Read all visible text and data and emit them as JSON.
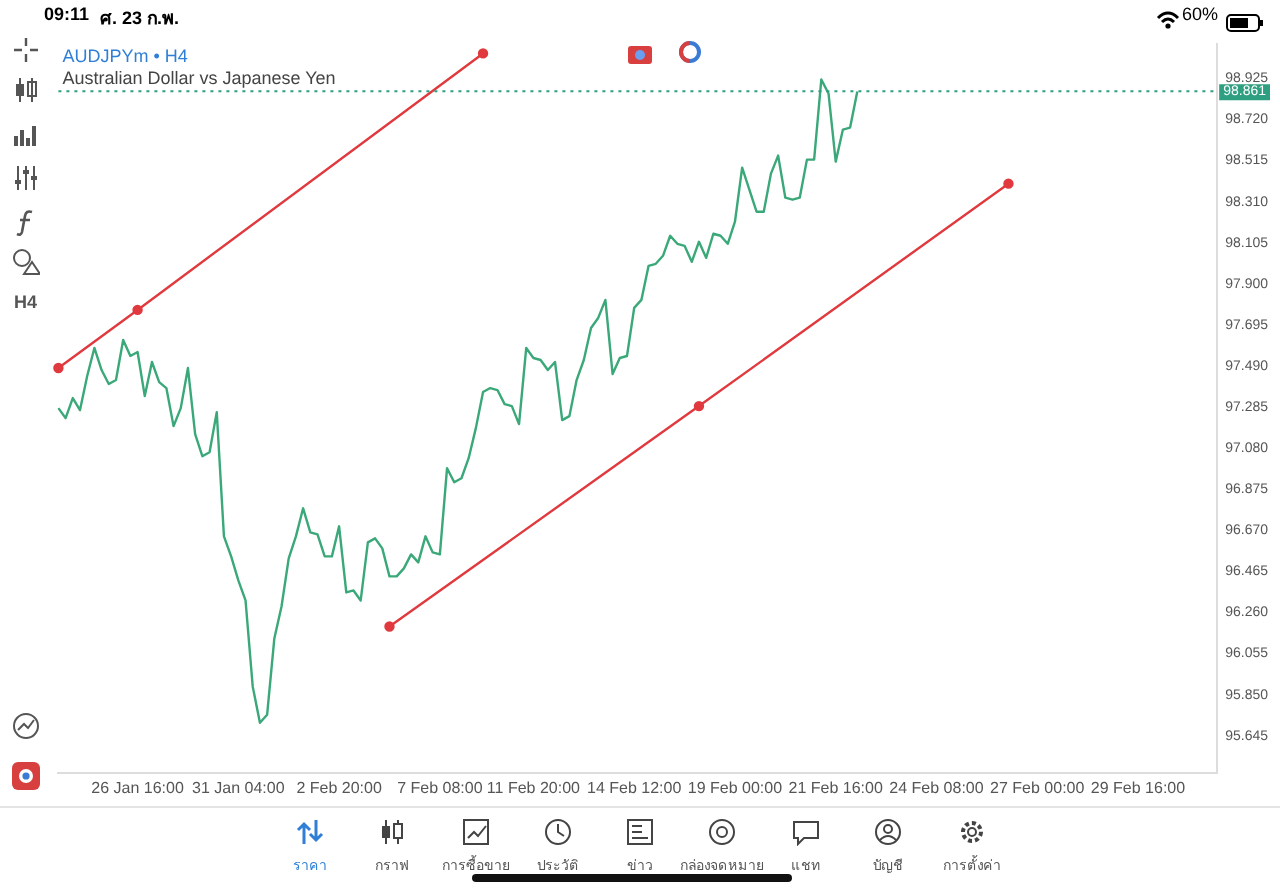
{
  "chart_data": {
    "type": "line",
    "title": "AUDJPYm • H4",
    "subtitle": "Australian Dollar vs Japanese Yen",
    "categories": [
      null,
      null,
      null,
      null,
      null,
      null,
      null,
      null,
      null,
      null,
      null,
      "26 Jan 16:00",
      null,
      null,
      null,
      null,
      null,
      null,
      null,
      null,
      null,
      null,
      null,
      null,
      null,
      "31 Jan 04:00",
      null,
      null,
      null,
      null,
      null,
      null,
      null,
      null,
      null,
      null,
      null,
      null,
      null,
      "2 Feb 20:00",
      null,
      null,
      null,
      null,
      null,
      null,
      null,
      null,
      null,
      null,
      null,
      null,
      null,
      "7 Feb 08:00",
      null,
      null,
      null,
      null,
      null,
      null,
      null,
      null,
      null,
      null,
      null,
      null,
      "11 Feb 20:00",
      null,
      null,
      null,
      null,
      null,
      null,
      null,
      null,
      null,
      null,
      null,
      null,
      null,
      "14 Feb 12:00",
      null,
      null,
      null,
      null,
      null,
      null,
      null,
      null,
      null,
      null,
      null,
      null,
      null,
      "19 Feb 00:00",
      null,
      null,
      null,
      null,
      null,
      null,
      null,
      null,
      null,
      null,
      null,
      null,
      null,
      "21 Feb 16:00",
      null,
      null,
      null,
      null,
      null,
      null,
      null,
      null,
      null,
      null,
      null,
      null,
      null,
      "24 Feb 08:00",
      null,
      null,
      null,
      null,
      null,
      null,
      null,
      null,
      null,
      null,
      null,
      null,
      null,
      "27 Feb 00:00",
      null,
      null,
      null,
      null,
      null,
      null,
      null,
      null,
      null,
      null,
      null,
      null,
      null,
      "29 Feb 16:00",
      null,
      null,
      null,
      null,
      null,
      null,
      null,
      null,
      null,
      null,
      null
    ],
    "ylim": [
      95.46,
      99.095
    ],
    "yticks": [
      {
        "value": 95.645,
        "label": "95.645"
      },
      {
        "value": 95.85,
        "label": "95.850"
      },
      {
        "value": 96.055,
        "label": "96.055"
      },
      {
        "value": 96.26,
        "label": "96.260"
      },
      {
        "value": 96.465,
        "label": "96.465"
      },
      {
        "value": 96.67,
        "label": "96.670"
      },
      {
        "value": 96.875,
        "label": "96.875"
      },
      {
        "value": 97.08,
        "label": "97.080"
      },
      {
        "value": 97.285,
        "label": "97.285"
      },
      {
        "value": 97.49,
        "label": "97.490"
      },
      {
        "value": 97.695,
        "label": "97.695"
      },
      {
        "value": 97.9,
        "label": "97.900"
      },
      {
        "value": 98.105,
        "label": "98.105"
      },
      {
        "value": 98.31,
        "label": "98.310"
      },
      {
        "value": 98.515,
        "label": "98.515"
      },
      {
        "value": 98.72,
        "label": "98.720"
      },
      {
        "value": 98.925,
        "label": "98.925"
      }
    ],
    "marker": "none",
    "series": [
      {
        "color": "#3aa878",
        "values": [
          97.28,
          97.23,
          97.33,
          97.27,
          97.44,
          97.58,
          97.47,
          97.4,
          97.42,
          97.62,
          97.54,
          97.56,
          97.34,
          97.51,
          97.41,
          97.38,
          97.19,
          97.28,
          97.48,
          97.15,
          97.04,
          97.06,
          97.26,
          96.64,
          96.54,
          96.42,
          96.32,
          95.89,
          95.71,
          95.75,
          96.13,
          96.29,
          96.53,
          96.64,
          96.78,
          96.66,
          96.65,
          96.54,
          96.54,
          96.69,
          96.36,
          96.37,
          96.32,
          96.61,
          96.63,
          96.58,
          96.44,
          96.44,
          96.48,
          96.55,
          96.51,
          96.64,
          96.56,
          96.55,
          96.98,
          96.91,
          96.93,
          97.03,
          97.18,
          97.36,
          97.38,
          97.37,
          97.3,
          97.29,
          97.2,
          97.58,
          97.53,
          97.52,
          97.47,
          97.51,
          97.22,
          97.24,
          97.42,
          97.52,
          97.68,
          97.73,
          97.82,
          97.45,
          97.53,
          97.54,
          97.78,
          97.82,
          97.99,
          98.0,
          98.04,
          98.14,
          98.1,
          98.09,
          98.01,
          98.11,
          98.03,
          98.15,
          98.14,
          98.1,
          98.21,
          98.48,
          98.37,
          98.26,
          98.26,
          98.45,
          98.54,
          98.33,
          98.32,
          98.33,
          98.52,
          98.52,
          98.92,
          98.85,
          98.51,
          98.67,
          98.68,
          98.86,
          null,
          null,
          null,
          null,
          null,
          null,
          null,
          null,
          null,
          null,
          null,
          null,
          null,
          null,
          null,
          null,
          null,
          null,
          null,
          null,
          null,
          null,
          null,
          null,
          null,
          null,
          null,
          null,
          null,
          null,
          null,
          null,
          null,
          null,
          null,
          null,
          null,
          null,
          null,
          null,
          null,
          null,
          null,
          null,
          null,
          null,
          null,
          null,
          null,
          null
        ]
      },
      {
        "type": "line",
        "color": "#e0393e",
        "marker": "circle",
        "values": [
          97.48,
          null,
          null,
          null,
          null,
          null,
          null,
          null,
          null,
          null,
          null,
          97.77,
          null,
          null,
          null,
          null,
          null,
          null,
          null,
          null,
          null,
          null,
          null,
          null,
          null,
          null,
          null,
          null,
          null,
          null,
          null,
          null,
          null,
          null,
          null,
          null,
          null,
          null,
          null,
          null,
          null,
          null,
          null,
          null,
          null,
          null,
          null,
          null,
          null,
          null,
          null,
          null,
          null,
          null,
          null,
          null,
          null,
          null,
          null,
          99.05,
          null,
          null,
          null,
          null,
          null,
          null,
          null,
          null,
          null,
          null,
          null,
          null,
          null,
          null,
          null,
          null,
          null,
          null,
          null,
          null,
          null,
          null,
          null,
          null,
          null,
          null,
          null,
          null,
          null,
          null,
          null,
          null,
          null,
          null,
          null,
          null,
          null,
          null,
          null,
          null,
          null,
          null,
          null,
          null,
          null,
          null,
          null,
          null,
          null,
          null,
          null,
          null,
          null,
          null,
          null,
          null,
          null,
          null,
          null,
          null,
          null,
          null,
          null,
          null,
          null,
          null,
          null,
          null,
          null,
          null,
          null,
          null,
          null,
          null,
          null,
          null,
          null,
          null,
          null,
          null,
          null,
          null,
          null,
          null,
          null,
          null,
          null,
          null,
          null,
          null,
          null,
          null,
          null,
          null,
          null,
          null,
          null,
          null,
          null,
          null,
          null,
          null
        ]
      },
      {
        "type": "line",
        "color": "#e0393e",
        "marker": "circle",
        "values": [
          null,
          null,
          null,
          null,
          null,
          null,
          null,
          null,
          null,
          null,
          null,
          null,
          null,
          null,
          null,
          null,
          null,
          null,
          null,
          null,
          null,
          null,
          null,
          null,
          null,
          null,
          null,
          null,
          null,
          null,
          null,
          null,
          null,
          null,
          null,
          null,
          null,
          null,
          null,
          null,
          null,
          null,
          null,
          null,
          null,
          null,
          96.19,
          null,
          null,
          null,
          null,
          null,
          null,
          null,
          null,
          null,
          null,
          null,
          null,
          null,
          null,
          null,
          null,
          null,
          null,
          null,
          null,
          null,
          null,
          null,
          null,
          null,
          null,
          null,
          null,
          null,
          null,
          null,
          null,
          null,
          null,
          null,
          null,
          null,
          null,
          null,
          null,
          null,
          null,
          97.29,
          null,
          null,
          null,
          null,
          null,
          null,
          null,
          null,
          null,
          null,
          null,
          null,
          null,
          null,
          null,
          null,
          null,
          null,
          null,
          null,
          null,
          null,
          null,
          null,
          null,
          null,
          null,
          null,
          null,
          null,
          null,
          null,
          null,
          null,
          null,
          null,
          null,
          null,
          null,
          null,
          null,
          null,
          98.4,
          null,
          null,
          null,
          null,
          null,
          null,
          null,
          null,
          null,
          null,
          null,
          null,
          null,
          null,
          null,
          null,
          null,
          null,
          null,
          null,
          null,
          null,
          null,
          null,
          null,
          null,
          null,
          null,
          null
        ]
      }
    ],
    "ref_lines": [
      {
        "axis": "y",
        "value": 98.861,
        "label": "98.861",
        "color": "#2e9f80",
        "line_style": "dotted"
      }
    ],
    "annotations": [
      "09:11",
      "ศ. 23 ก.พ.",
      "60%",
      "H4",
      "ราคา",
      "กราฟ",
      "การซื้อขาย",
      "ประวัติ",
      "ข่าว",
      "กล่องจดหมาย",
      "แชท",
      "บัญชี",
      "การตั้งค่า"
    ]
  }
}
